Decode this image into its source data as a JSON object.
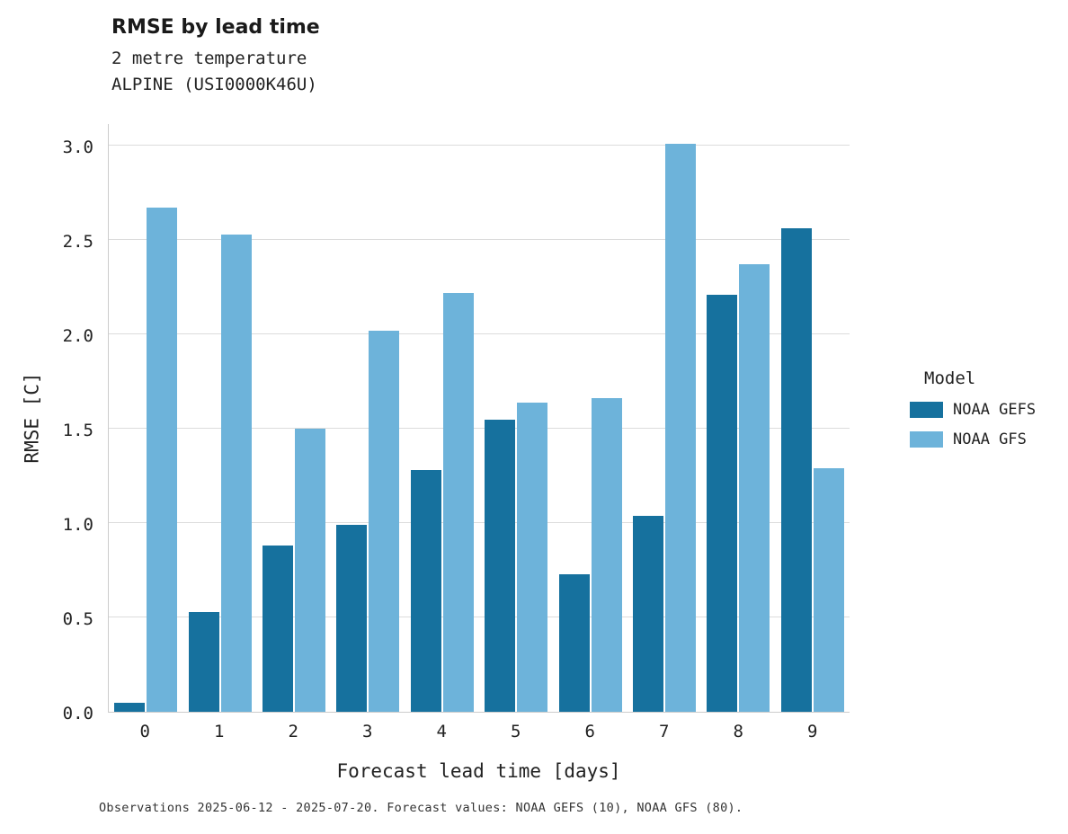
{
  "header": {
    "title": "RMSE by lead time",
    "subtitle_line1": "2 metre temperature",
    "subtitle_line2": "ALPINE (USI0000K46U)"
  },
  "legend": {
    "title": "Model",
    "entries": [
      {
        "label": "NOAA GEFS",
        "color": "#16719e"
      },
      {
        "label": "NOAA GFS",
        "color": "#6db3da"
      }
    ]
  },
  "footer": {
    "caption": "Observations 2025-06-12 - 2025-07-20. Forecast values: NOAA GEFS (10), NOAA GFS (80)."
  },
  "chart_data": {
    "type": "bar",
    "title": "RMSE by lead time",
    "subtitle": "2 metre temperature ALPINE (USI0000K46U)",
    "categories": [
      "0",
      "1",
      "2",
      "3",
      "4",
      "5",
      "6",
      "7",
      "8",
      "9"
    ],
    "series": [
      {
        "name": "NOAA GEFS",
        "color": "#16719e",
        "values": [
          0.05,
          0.53,
          0.88,
          0.99,
          1.28,
          1.55,
          0.73,
          1.04,
          2.21,
          2.56
        ]
      },
      {
        "name": "NOAA GFS",
        "color": "#6db3da",
        "values": [
          2.67,
          2.53,
          1.5,
          2.02,
          2.22,
          1.64,
          1.66,
          3.01,
          2.37,
          1.29
        ]
      }
    ],
    "xlabel": "Forecast lead time [days]",
    "ylabel": "RMSE [C]",
    "ylim": [
      0.0,
      3.0
    ],
    "yticks": [
      0.0,
      0.5,
      1.0,
      1.5,
      2.0,
      2.5,
      3.0
    ],
    "grid": true,
    "legend_position": "right",
    "legend_title": "Model"
  }
}
